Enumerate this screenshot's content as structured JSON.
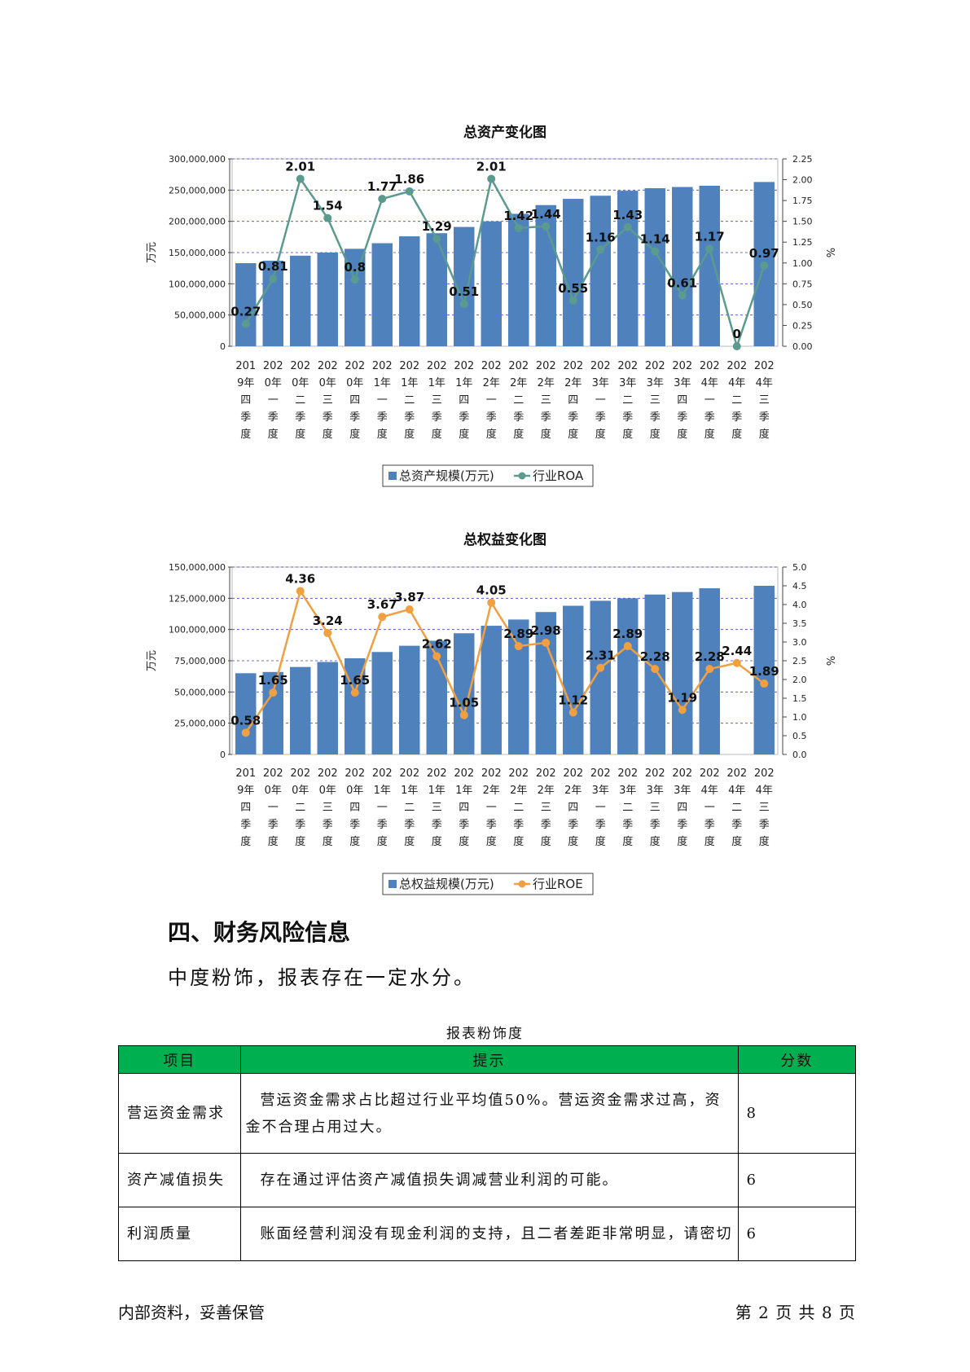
{
  "quarters": [
    [
      "201",
      "9年",
      "四",
      "季",
      "度"
    ],
    [
      "202",
      "0年",
      "一",
      "季",
      "度"
    ],
    [
      "202",
      "0年",
      "二",
      "季",
      "度"
    ],
    [
      "202",
      "0年",
      "三",
      "季",
      "度"
    ],
    [
      "202",
      "0年",
      "四",
      "季",
      "度"
    ],
    [
      "202",
      "1年",
      "一",
      "季",
      "度"
    ],
    [
      "202",
      "1年",
      "二",
      "季",
      "度"
    ],
    [
      "202",
      "1年",
      "三",
      "季",
      "度"
    ],
    [
      "202",
      "1年",
      "四",
      "季",
      "度"
    ],
    [
      "202",
      "2年",
      "一",
      "季",
      "度"
    ],
    [
      "202",
      "2年",
      "二",
      "季",
      "度"
    ],
    [
      "202",
      "2年",
      "三",
      "季",
      "度"
    ],
    [
      "202",
      "2年",
      "四",
      "季",
      "度"
    ],
    [
      "202",
      "3年",
      "一",
      "季",
      "度"
    ],
    [
      "202",
      "3年",
      "二",
      "季",
      "度"
    ],
    [
      "202",
      "3年",
      "三",
      "季",
      "度"
    ],
    [
      "202",
      "3年",
      "四",
      "季",
      "度"
    ],
    [
      "202",
      "4年",
      "一",
      "季",
      "度"
    ],
    [
      "202",
      "4年",
      "二",
      "季",
      "度"
    ],
    [
      "202",
      "4年",
      "三",
      "季",
      "度"
    ]
  ],
  "chart_data": [
    {
      "type": "bar",
      "title": "总资产变化图",
      "ylabel": "万元",
      "y2label": "%",
      "ylim": [
        0,
        300000000
      ],
      "y2lim": [
        0,
        2.25
      ],
      "yticks": [
        "0",
        "50,000,000",
        "100,000,000",
        "150,000,000",
        "200,000,000",
        "250,000,000",
        "300,000,000"
      ],
      "y2ticks": [
        "0.00",
        "0.25",
        "0.50",
        "0.75",
        "1.00",
        "1.25",
        "1.50",
        "1.75",
        "2.00",
        "2.25"
      ],
      "grid": true,
      "bar_color": "#4f81bd",
      "line_color": "#5b9a8f",
      "bar_series": {
        "name": "总资产规模(万元)",
        "values": [
          133000000,
          137000000,
          145000000,
          150000000,
          156000000,
          165000000,
          176000000,
          181000000,
          191000000,
          200000000,
          212000000,
          226000000,
          236000000,
          241000000,
          249000000,
          253000000,
          255000000,
          257000000,
          null,
          263000000
        ]
      },
      "line_series": {
        "name": "行业ROA",
        "values": [
          0.27,
          0.81,
          2.01,
          1.54,
          0.8,
          1.77,
          1.86,
          1.29,
          0.51,
          2.01,
          1.42,
          1.44,
          0.55,
          1.16,
          1.43,
          1.14,
          0.61,
          1.17,
          0,
          0.97
        ],
        "labels": [
          "0.27",
          "0.81",
          "2.01",
          "1.54",
          "0.8",
          "1.77",
          "1.86",
          "1.29",
          "0.51",
          "2.01",
          "1.42",
          "1.44",
          "0.55",
          "1.16",
          "1.43",
          "1.14",
          "0.61",
          "1.17",
          "0",
          "0.97"
        ]
      },
      "legend": "bottom"
    },
    {
      "type": "bar",
      "title": "总权益变化图",
      "ylabel": "万元",
      "y2label": "%",
      "ylim": [
        0,
        150000000
      ],
      "y2lim": [
        0,
        5.0
      ],
      "yticks": [
        "0",
        "25,000,000",
        "50,000,000",
        "75,000,000",
        "100,000,000",
        "125,000,000",
        "150,000,000"
      ],
      "y2ticks": [
        "0.0",
        "0.5",
        "1.0",
        "1.5",
        "2.0",
        "2.5",
        "3.0",
        "3.5",
        "4.0",
        "4.5",
        "5.0"
      ],
      "grid": true,
      "bar_color": "#4f81bd",
      "line_color": "#f0a040",
      "bar_series": {
        "name": "总权益规模(万元)",
        "values": [
          65000000,
          66000000,
          70000000,
          74000000,
          77000000,
          82000000,
          87000000,
          91000000,
          97000000,
          103000000,
          108000000,
          114000000,
          119000000,
          123000000,
          125000000,
          128000000,
          130000000,
          133000000,
          null,
          135000000
        ]
      },
      "line_series": {
        "name": "行业ROE",
        "values": [
          0.58,
          1.65,
          4.36,
          3.24,
          1.65,
          3.67,
          3.87,
          2.62,
          1.05,
          4.05,
          2.89,
          2.98,
          1.12,
          2.31,
          2.89,
          2.28,
          1.19,
          2.28,
          2.44,
          1.89
        ],
        "labels": [
          "0.58",
          "1.65",
          "4.36",
          "3.24",
          "1.65",
          "3.67",
          "3.87",
          "2.62",
          "1.05",
          "4.05",
          "2.89",
          "2.98",
          "1.12",
          "2.31",
          "2.89",
          "2.28",
          "1.19",
          "2.28",
          "2.44",
          "1.89"
        ]
      },
      "legend": "bottom"
    }
  ],
  "section": {
    "title": "四、财务风险信息",
    "summary": "中度粉饰，报表存在一定水分。"
  },
  "table": {
    "caption": "报表粉饰度",
    "headers": [
      "项目",
      "提示",
      "分数"
    ],
    "rows": [
      {
        "item": "营运资金需求",
        "hint": "营运资金需求占比超过行业平均值50%。营运资金需求过高，资金不合理占用过大。",
        "score": "8"
      },
      {
        "item": "资产减值损失",
        "hint": "存在通过评估资产减值损失调减营业利润的可能。",
        "score": "6"
      },
      {
        "item": "利润质量",
        "hint": "账面经营利润没有现金利润的支持，且二者差距非常明显，请密切",
        "score": "6"
      }
    ]
  },
  "footer": {
    "left": "内部资料，妥善保管",
    "right": "第 2 页   共 8 页"
  }
}
